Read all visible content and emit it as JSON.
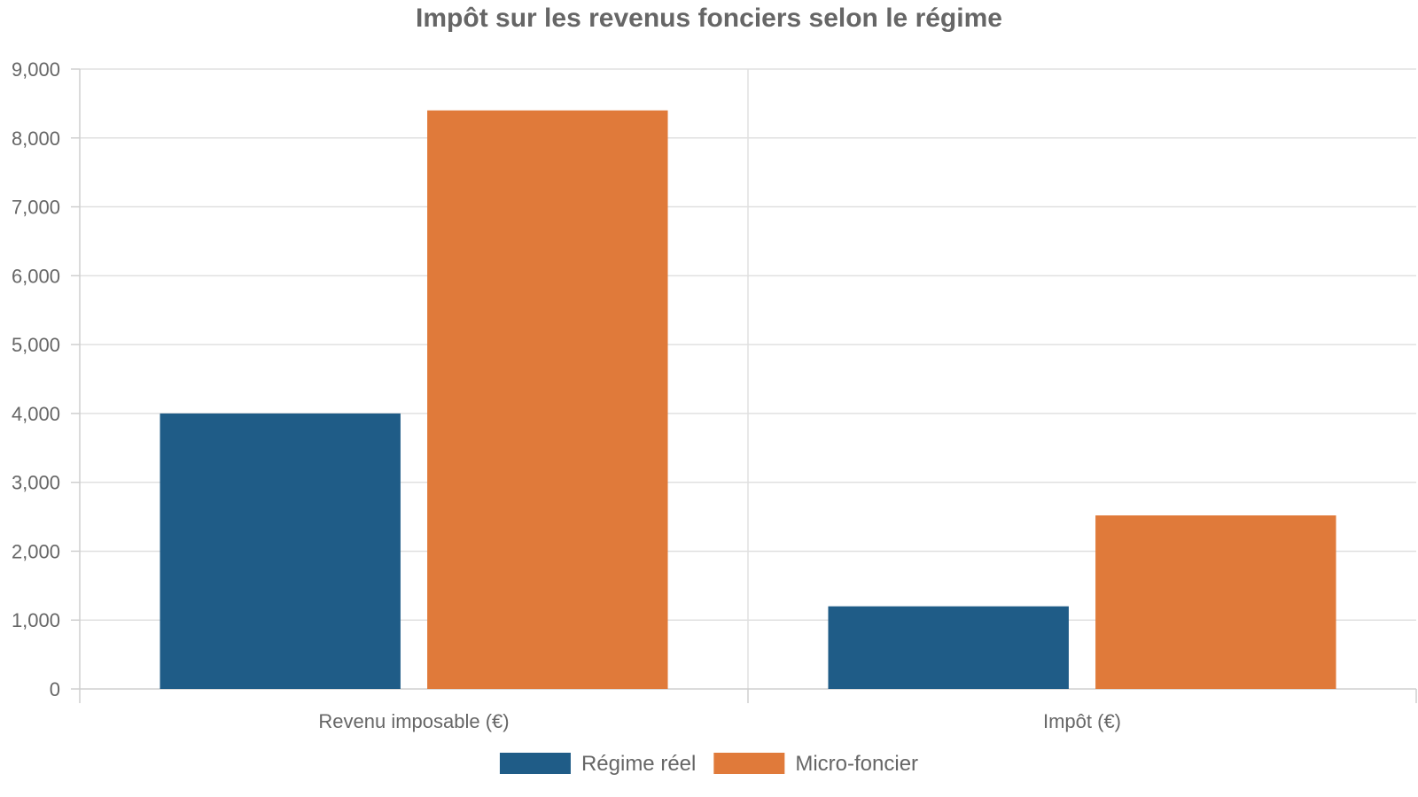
{
  "chart_data": {
    "type": "bar",
    "title": "Impôt sur les revenus fonciers selon le régime",
    "xlabel": "",
    "ylabel": "",
    "categories": [
      "Revenu imposable (€)",
      "Impôt (€)"
    ],
    "series": [
      {
        "name": "Régime réel",
        "color": "#1f5c87",
        "values": [
          4000,
          1200
        ]
      },
      {
        "name": "Micro-foncier",
        "color": "#e07a3a",
        "values": [
          8400,
          2520
        ]
      }
    ],
    "ylim": [
      0,
      9000
    ],
    "yticks": [
      0,
      1000,
      2000,
      3000,
      4000,
      5000,
      6000,
      7000,
      8000,
      9000
    ],
    "ytick_labels": [
      "0",
      "1,000",
      "2,000",
      "3,000",
      "4,000",
      "5,000",
      "6,000",
      "7,000",
      "8,000",
      "9,000"
    ],
    "grid": true,
    "legend_position": "bottom"
  }
}
